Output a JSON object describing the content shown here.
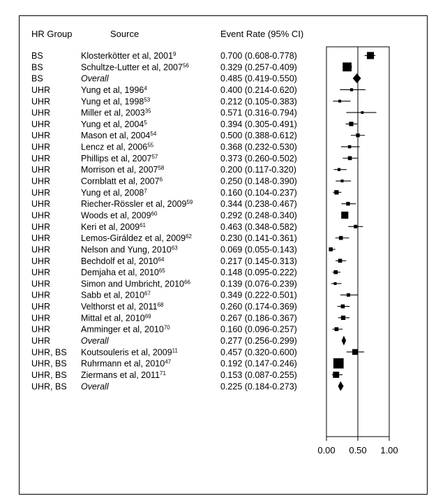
{
  "chart_data": {
    "type": "forest",
    "headers": {
      "group": "HR Group",
      "source": "Source",
      "event_rate": "Event Rate (95% CI)"
    },
    "rows": [
      {
        "group": "BS",
        "source": "Klosterkötter et al, 2001",
        "ref": "9",
        "overall": false,
        "ci_text": "0.700 (0.608-0.778)",
        "rate": 0.7,
        "lower": 0.608,
        "upper": 0.778,
        "weight": 0.55
      },
      {
        "group": "BS",
        "source": "Schultze-Lutter et al, 2007",
        "ref": "56",
        "overall": false,
        "ci_text": "0.329 (0.257-0.409)",
        "rate": 0.329,
        "lower": 0.257,
        "upper": 0.409,
        "weight": 0.75
      },
      {
        "group": "BS",
        "source": "Overall",
        "ref": "",
        "overall": true,
        "ci_text": "0.485 (0.419-0.550)",
        "rate": 0.485,
        "lower": 0.419,
        "upper": 0.55,
        "weight": 0
      },
      {
        "group": "UHR",
        "source": "Yung et al, 1996",
        "ref": "4",
        "overall": false,
        "ci_text": "0.400 (0.214-0.620)",
        "rate": 0.4,
        "lower": 0.214,
        "upper": 0.62,
        "weight": 0.1
      },
      {
        "group": "UHR",
        "source": "Yung et al, 1998",
        "ref": "53",
        "overall": false,
        "ci_text": "0.212 (0.105-0.383)",
        "rate": 0.212,
        "lower": 0.105,
        "upper": 0.383,
        "weight": 0.08
      },
      {
        "group": "UHR",
        "source": "Miller et al, 2003",
        "ref": "35",
        "overall": false,
        "ci_text": "0.571 (0.316-0.794)",
        "rate": 0.571,
        "lower": 0.316,
        "upper": 0.794,
        "weight": 0.06
      },
      {
        "group": "UHR",
        "source": "Yung et al, 2004",
        "ref": "5",
        "overall": false,
        "ci_text": "0.394 (0.305-0.491)",
        "rate": 0.394,
        "lower": 0.305,
        "upper": 0.491,
        "weight": 0.25
      },
      {
        "group": "UHR",
        "source": "Mason et al, 2004",
        "ref": "54",
        "overall": false,
        "ci_text": "0.500 (0.388-0.612)",
        "rate": 0.5,
        "lower": 0.388,
        "upper": 0.612,
        "weight": 0.18
      },
      {
        "group": "UHR",
        "source": "Lencz et al, 2006",
        "ref": "55",
        "overall": false,
        "ci_text": "0.368 (0.232-0.530)",
        "rate": 0.368,
        "lower": 0.232,
        "upper": 0.53,
        "weight": 0.12
      },
      {
        "group": "UHR",
        "source": "Phillips et al, 2007",
        "ref": "57",
        "overall": false,
        "ci_text": "0.373 (0.260-0.502)",
        "rate": 0.373,
        "lower": 0.26,
        "upper": 0.502,
        "weight": 0.2
      },
      {
        "group": "UHR",
        "source": "Morrison et al, 2007",
        "ref": "58",
        "overall": false,
        "ci_text": "0.200 (0.117-0.320)",
        "rate": 0.2,
        "lower": 0.117,
        "upper": 0.32,
        "weight": 0.1
      },
      {
        "group": "UHR",
        "source": "Cornblatt et al, 2007",
        "ref": "6",
        "overall": false,
        "ci_text": "0.250 (0.148-0.390)",
        "rate": 0.25,
        "lower": 0.148,
        "upper": 0.39,
        "weight": 0.08
      },
      {
        "group": "UHR",
        "source": "Yung et al, 2008",
        "ref": "7",
        "overall": false,
        "ci_text": "0.160 (0.104-0.237)",
        "rate": 0.16,
        "lower": 0.104,
        "upper": 0.237,
        "weight": 0.25
      },
      {
        "group": "UHR",
        "source": "Riecher-Rössler et al, 2009",
        "ref": "59",
        "overall": false,
        "ci_text": "0.344 (0.238-0.467)",
        "rate": 0.344,
        "lower": 0.238,
        "upper": 0.467,
        "weight": 0.18
      },
      {
        "group": "UHR",
        "source": "Woods et al, 2009",
        "ref": "60",
        "overall": false,
        "ci_text": "0.292 (0.248-0.340)",
        "rate": 0.292,
        "lower": 0.248,
        "upper": 0.34,
        "weight": 0.55
      },
      {
        "group": "UHR",
        "source": "Keri et al, 2009",
        "ref": "61",
        "overall": false,
        "ci_text": "0.463 (0.348-0.582)",
        "rate": 0.463,
        "lower": 0.348,
        "upper": 0.582,
        "weight": 0.15
      },
      {
        "group": "UHR",
        "source": "Lemos-Giráldez et al, 2009",
        "ref": "62",
        "overall": false,
        "ci_text": "0.230 (0.141-0.361)",
        "rate": 0.23,
        "lower": 0.141,
        "upper": 0.361,
        "weight": 0.2
      },
      {
        "group": "UHR",
        "source": "Nelson and Yung, 2010",
        "ref": "63",
        "overall": false,
        "ci_text": "0.069 (0.055-0.143)",
        "rate": 0.069,
        "lower": 0.055,
        "upper": 0.143,
        "weight": 0.2
      },
      {
        "group": "UHR",
        "source": "Bechdolf et al, 2010",
        "ref": "64",
        "overall": false,
        "ci_text": "0.217 (0.145-0.313)",
        "rate": 0.217,
        "lower": 0.145,
        "upper": 0.313,
        "weight": 0.2
      },
      {
        "group": "UHR",
        "source": "Demjaha et al, 2010",
        "ref": "65",
        "overall": false,
        "ci_text": "0.148 (0.095-0.222)",
        "rate": 0.148,
        "lower": 0.095,
        "upper": 0.222,
        "weight": 0.2
      },
      {
        "group": "UHR",
        "source": "Simon and Umbricht, 2010",
        "ref": "66",
        "overall": false,
        "ci_text": "0.139 (0.076-0.239)",
        "rate": 0.139,
        "lower": 0.076,
        "upper": 0.239,
        "weight": 0.08
      },
      {
        "group": "UHR",
        "source": "Sabb et al, 2010",
        "ref": "67",
        "overall": false,
        "ci_text": "0.349 (0.222-0.501)",
        "rate": 0.349,
        "lower": 0.222,
        "upper": 0.501,
        "weight": 0.15
      },
      {
        "group": "UHR",
        "source": "Velthorst et al, 2011",
        "ref": "68",
        "overall": false,
        "ci_text": "0.260 (0.174-0.369)",
        "rate": 0.26,
        "lower": 0.174,
        "upper": 0.369,
        "weight": 0.2
      },
      {
        "group": "UHR",
        "source": "Mittal et al, 2010",
        "ref": "69",
        "overall": false,
        "ci_text": "0.267 (0.186-0.367)",
        "rate": 0.267,
        "lower": 0.186,
        "upper": 0.367,
        "weight": 0.25
      },
      {
        "group": "UHR",
        "source": "Amminger et al, 2010",
        "ref": "70",
        "overall": false,
        "ci_text": "0.160 (0.096-0.257)",
        "rate": 0.16,
        "lower": 0.096,
        "upper": 0.257,
        "weight": 0.2
      },
      {
        "group": "UHR",
        "source": "Overall",
        "ref": "",
        "overall": true,
        "ci_text": "0.277 (0.256-0.299)",
        "rate": 0.277,
        "lower": 0.256,
        "upper": 0.299,
        "weight": 0
      },
      {
        "group": "UHR, BS",
        "source": "Koutsouleris et al, 2009",
        "ref": "11",
        "overall": false,
        "ci_text": "0.457 (0.320-0.600)",
        "rate": 0.457,
        "lower": 0.32,
        "upper": 0.6,
        "weight": 0.4
      },
      {
        "group": "UHR, BS",
        "source": "Ruhrmann et al, 2010",
        "ref": "47",
        "overall": false,
        "ci_text": "0.192 (0.147-0.246)",
        "rate": 0.192,
        "lower": 0.147,
        "upper": 0.246,
        "weight": 0.9
      },
      {
        "group": "UHR, BS",
        "source": "Ziermans et al, 2011",
        "ref": "71",
        "overall": false,
        "ci_text": "0.153 (0.087-0.255)",
        "rate": 0.153,
        "lower": 0.087,
        "upper": 0.255,
        "weight": 0.45
      },
      {
        "group": "UHR, BS",
        "source": "Overall",
        "ref": "",
        "overall": true,
        "ci_text": "0.225 (0.184-0.273)",
        "rate": 0.225,
        "lower": 0.184,
        "upper": 0.273,
        "weight": 0
      }
    ],
    "xlim": [
      0,
      1
    ],
    "x_ticks": [
      0,
      0.5,
      1
    ],
    "x_tick_labels": [
      "0.00",
      "0.50",
      "1.00"
    ],
    "reference_line": 0.5,
    "grid": false
  }
}
